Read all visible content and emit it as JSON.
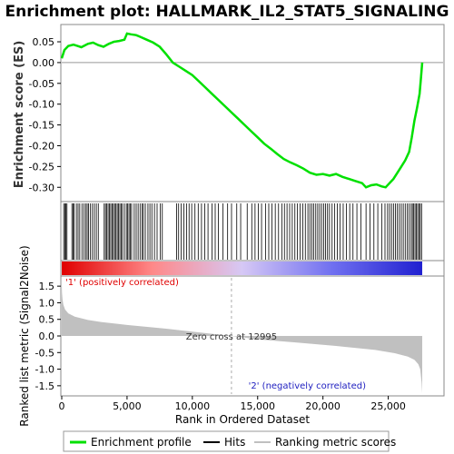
{
  "chart_data": {
    "type": "line",
    "title": "Enrichment plot: HALLMARK_IL2_STAT5_SIGNALING",
    "es_panel": {
      "ylabel": "Enrichment score (ES)",
      "ylim": [
        -0.33,
        0.085
      ],
      "yticks": [
        0.05,
        0.0,
        -0.05,
        -0.1,
        -0.15,
        -0.2,
        -0.25,
        -0.3
      ],
      "ytick_labels": [
        "0.05",
        "0.00",
        "-0.05",
        "-0.10",
        "-0.15",
        "-0.20",
        "-0.25",
        "-0.30"
      ],
      "series": [
        {
          "name": "Enrichment profile",
          "color": "#00e000",
          "x": [
            0,
            200,
            500,
            900,
            1200,
            1500,
            2000,
            2400,
            2800,
            3200,
            3600,
            4000,
            4400,
            4800,
            5000,
            5300,
            5700,
            6000,
            6500,
            7000,
            7500,
            8000,
            8500,
            9000,
            9500,
            10000,
            10500,
            11000,
            11500,
            12000,
            12500,
            13000,
            13500,
            14000,
            14500,
            15000,
            15500,
            16000,
            16500,
            17000,
            17500,
            18000,
            18500,
            19000,
            19500,
            20000,
            20500,
            21000,
            21500,
            22000,
            22500,
            23000,
            23300,
            23700,
            24100,
            24500,
            24800,
            25100,
            25400,
            25700,
            26000,
            26300,
            26600,
            26800,
            27000,
            27200,
            27400,
            27500,
            27600
          ],
          "values": [
            0.01,
            0.03,
            0.04,
            0.043,
            0.04,
            0.037,
            0.045,
            0.048,
            0.042,
            0.038,
            0.045,
            0.05,
            0.052,
            0.055,
            0.07,
            0.068,
            0.066,
            0.062,
            0.055,
            0.048,
            0.038,
            0.02,
            0.0,
            -0.01,
            -0.02,
            -0.03,
            -0.045,
            -0.06,
            -0.075,
            -0.09,
            -0.105,
            -0.12,
            -0.135,
            -0.15,
            -0.165,
            -0.18,
            -0.195,
            -0.207,
            -0.22,
            -0.232,
            -0.24,
            -0.247,
            -0.255,
            -0.265,
            -0.27,
            -0.268,
            -0.272,
            -0.268,
            -0.275,
            -0.28,
            -0.285,
            -0.29,
            -0.3,
            -0.295,
            -0.293,
            -0.298,
            -0.3,
            -0.29,
            -0.28,
            -0.265,
            -0.25,
            -0.235,
            -0.215,
            -0.18,
            -0.14,
            -0.11,
            -0.075,
            -0.04,
            0.0
          ]
        }
      ]
    },
    "hits": [
      150,
      250,
      320,
      400,
      780,
      880,
      950,
      1120,
      1250,
      1380,
      1550,
      1700,
      1850,
      1950,
      2050,
      2200,
      2350,
      2500,
      2650,
      2800,
      3250,
      3350,
      3450,
      3550,
      3650,
      3750,
      3850,
      3950,
      4050,
      4150,
      4250,
      4350,
      4450,
      4550,
      4650,
      4800,
      4950,
      5050,
      5150,
      5250,
      5350,
      5550,
      5700,
      5850,
      6000,
      6150,
      6250,
      6400,
      6600,
      6750,
      6900,
      7100,
      7300,
      7550,
      7700,
      8800,
      8950,
      9150,
      9350,
      9550,
      9750,
      9950,
      10200,
      10450,
      10700,
      10950,
      11200,
      11500,
      11750,
      12000,
      12350,
      12700,
      13000,
      13400,
      13700,
      14200,
      14550,
      14800,
      15050,
      15300,
      15600,
      15850,
      16100,
      16350,
      16600,
      16850,
      17050,
      17250,
      17450,
      17650,
      17850,
      18050,
      18250,
      18450,
      18650,
      18850,
      19000,
      19150,
      19300,
      19450,
      19600,
      19750,
      19900,
      20050,
      20200,
      20350,
      20500,
      20700,
      20900,
      21100,
      21300,
      21550,
      21800,
      22050,
      22300,
      22600,
      22900,
      23300,
      23600,
      23900,
      24200,
      24500,
      24750,
      24950,
      25100,
      25250,
      25400,
      25550,
      25700,
      25850,
      26000,
      26150,
      26300,
      26450,
      26600,
      26750,
      26850,
      26950,
      27050,
      27150,
      27250,
      27350,
      27450,
      27550
    ],
    "metric_panel": {
      "ylabel": "Ranked list metric (Signal2Noise)",
      "ylim": [
        -1.75,
        1.75
      ],
      "yticks": [
        1.5,
        1.0,
        0.5,
        0.0,
        -0.5,
        -1.0,
        -1.5
      ],
      "ytick_labels": [
        "1.5",
        "1.0",
        "0.5",
        "0.0",
        "-0.5",
        "-1.0",
        "-1.5"
      ],
      "x": [
        0,
        20,
        60,
        120,
        250,
        500,
        1000,
        2000,
        3000,
        5000,
        8000,
        10000,
        12995,
        15000,
        18000,
        21000,
        24000,
        25500,
        26500,
        27000,
        27300,
        27450,
        27550,
        27600
      ],
      "values": [
        1.6,
        1.3,
        1.1,
        0.95,
        0.8,
        0.68,
        0.58,
        0.48,
        0.42,
        0.33,
        0.22,
        0.13,
        0.0,
        -0.1,
        -0.2,
        -0.3,
        -0.42,
        -0.52,
        -0.62,
        -0.72,
        -0.85,
        -1.0,
        -1.4,
        -1.72
      ],
      "fill_color": "#c0c0c0"
    },
    "heatmap_colors": [
      "#e00000",
      "#ff8888",
      "#d6c8f5",
      "#7070f0",
      "#2020d0"
    ],
    "xaxis": {
      "label": "Rank in Ordered Dataset",
      "xlim": [
        0,
        29200
      ],
      "ticks": [
        0,
        5000,
        10000,
        15000,
        20000,
        25000
      ],
      "tick_labels": [
        "0",
        "5,000",
        "10,000",
        "15,000",
        "20,000",
        "25,000"
      ]
    },
    "zero_cross": {
      "x": 12995,
      "label": "Zero cross at 12995"
    },
    "pos_label": "'1' (positively correlated)",
    "neg_label": "'2' (negatively correlated)",
    "legend": [
      "Enrichment profile",
      "Hits",
      "Ranking metric scores"
    ]
  }
}
